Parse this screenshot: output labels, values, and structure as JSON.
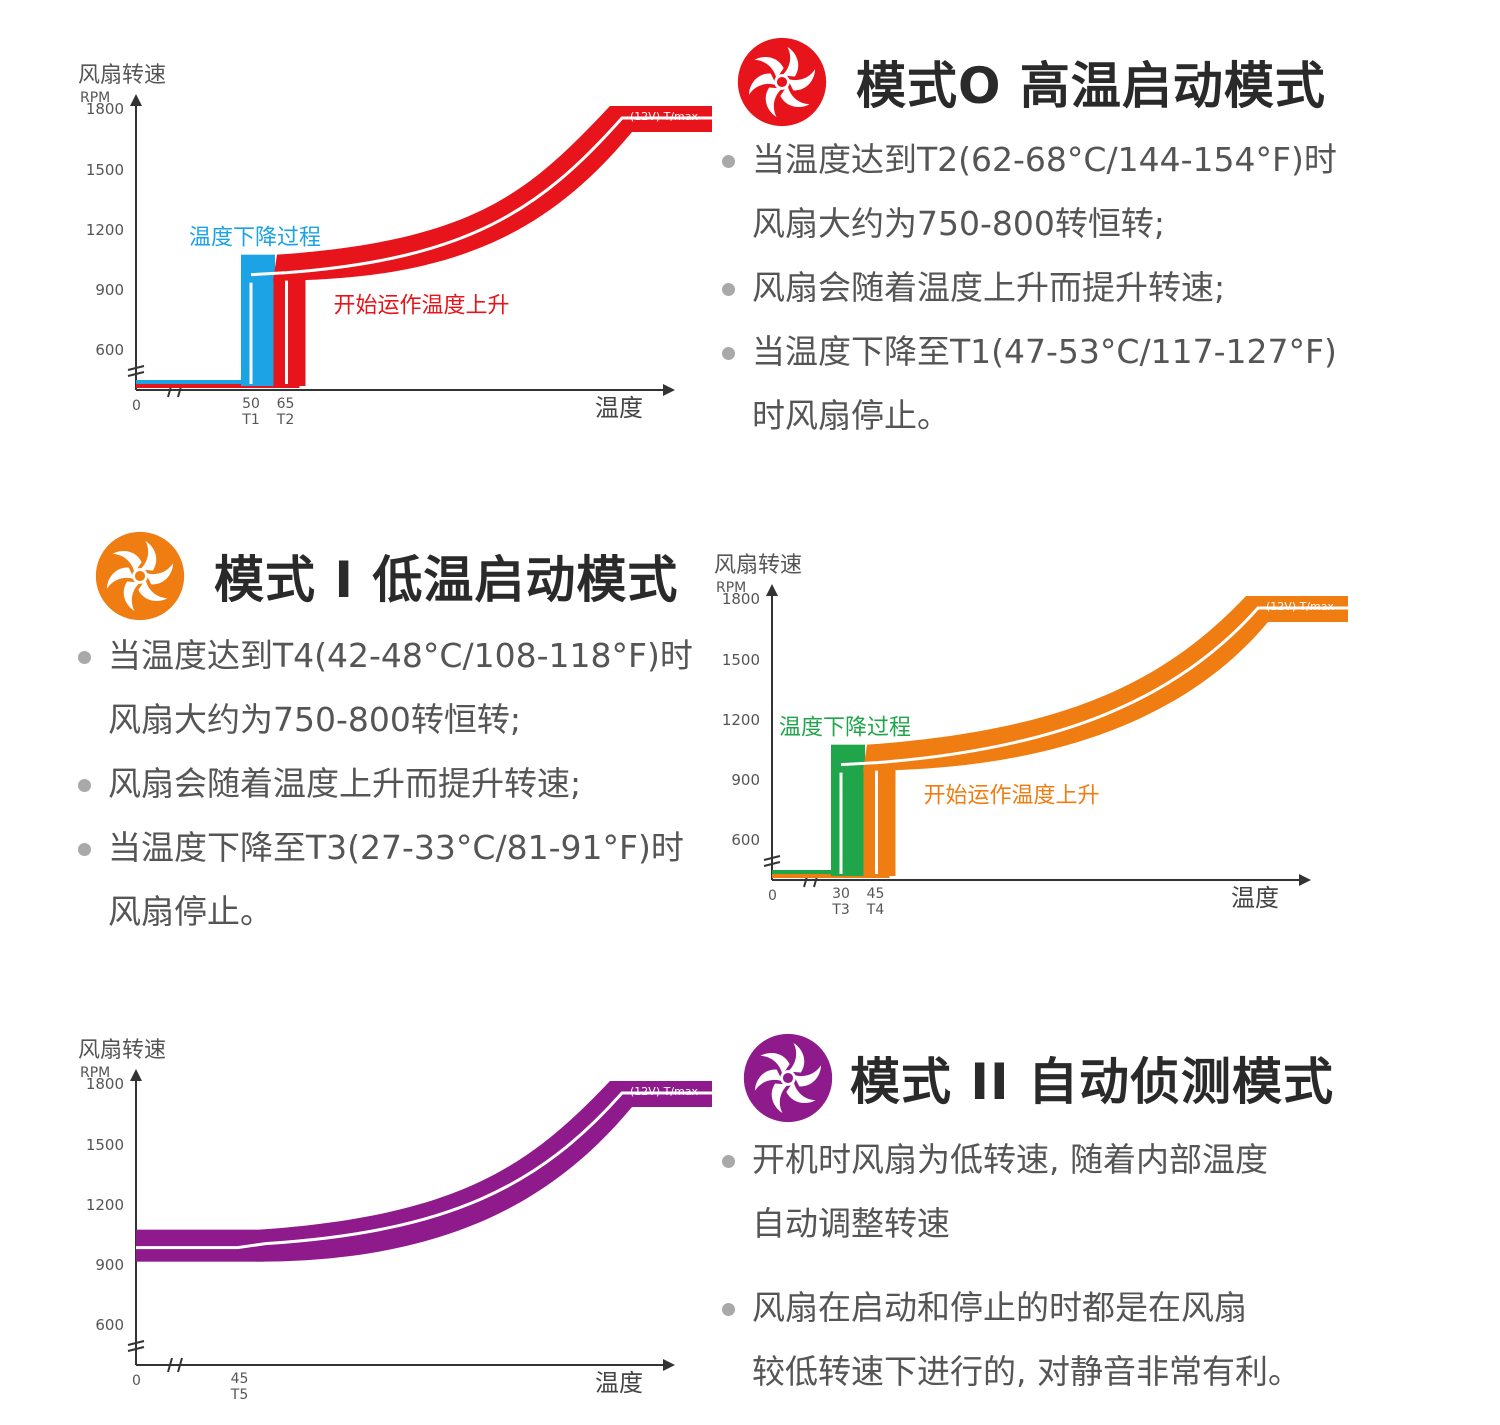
{
  "sections": [
    {
      "title": "模式O 高温启动模式",
      "icon": "fan-icon",
      "accent": "#e8141b",
      "bullets": [
        [
          "当温度达到T2(62-68°C/144-154°F)时",
          "风扇大约为750-800转恒转;"
        ],
        [
          "风扇会随着温度上升而提升转速;"
        ],
        [
          "当温度下降至T1(47-53°C/117-127°F)",
          "时风扇停止。"
        ]
      ]
    },
    {
      "title": "模式 I 低温启动模式",
      "icon": "fan-icon",
      "accent": "#ef7d12",
      "bullets": [
        [
          "当温度达到T4(42-48°C/108-118°F)时",
          "风扇大约为750-800转恒转;"
        ],
        [
          "风扇会随着温度上升而提升转速;"
        ],
        [
          "当温度下降至T3(27-33°C/81-91°F)时",
          "风扇停止。"
        ]
      ]
    },
    {
      "title": "模式 II 自动侦测模式",
      "icon": "fan-icon",
      "accent": "#8e1a8c",
      "bullets": [
        [
          "开机时风扇为低转速, 随着内部温度",
          "自动调整转速"
        ],
        [
          "风扇在启动和停止的时都是在风扇",
          "较低转速下进行的, 对静音非常有利。"
        ]
      ]
    }
  ],
  "chart_data": [
    {
      "type": "line",
      "ylabel": "风扇转速",
      "yunit": "RPM",
      "xlabel": "温度",
      "yticks": [
        600,
        900,
        1200,
        1500,
        1800
      ],
      "ylim": [
        0,
        1800
      ],
      "origin_label": "0",
      "axis_break": true,
      "main_color": "#e8141b",
      "fall_color": "#1ba3e6",
      "markers": [
        {
          "value": "50",
          "label": "T1",
          "x": 50
        },
        {
          "value": "65",
          "label": "T2",
          "x": 65
        }
      ],
      "fall_label": "温度下降过程",
      "rise_label": "开始运作温度上升",
      "max_label": "(12V)  T/max",
      "series": [
        {
          "name": "开始运作温度上升",
          "x": [
            0,
            65,
            65,
            100,
            117,
            130
          ],
          "y": [
            0,
            0,
            850,
            1050,
            1400,
            1800
          ]
        },
        {
          "name": "温度下降过程",
          "x": [
            130,
            100,
            50,
            50,
            0
          ],
          "y": [
            1800,
            850,
            850,
            0,
            0
          ]
        }
      ]
    },
    {
      "type": "line",
      "ylabel": "风扇转速",
      "yunit": "RPM",
      "xlabel": "温度",
      "yticks": [
        600,
        900,
        1200,
        1500,
        1800
      ],
      "ylim": [
        0,
        1800
      ],
      "origin_label": "0",
      "axis_break": true,
      "main_color": "#ef7d12",
      "fall_color": "#1fa64a",
      "markers": [
        {
          "value": "30",
          "label": "T3",
          "x": 30
        },
        {
          "value": "45",
          "label": "T4",
          "x": 45
        }
      ],
      "fall_label": "温度下降过程",
      "rise_label": "开始运作温度上升",
      "max_label": "(12V)  T/max",
      "series": [
        {
          "name": "开始运作温度上升",
          "x": [
            0,
            45,
            45,
            80,
            97,
            110
          ],
          "y": [
            0,
            0,
            850,
            1050,
            1400,
            1800
          ]
        },
        {
          "name": "温度下降过程",
          "x": [
            110,
            80,
            30,
            30,
            0
          ],
          "y": [
            1800,
            850,
            850,
            0,
            0
          ]
        }
      ]
    },
    {
      "type": "line",
      "ylabel": "风扇转速",
      "yunit": "RPM",
      "xlabel": "温度",
      "yticks": [
        600,
        900,
        1200,
        1500,
        1800
      ],
      "ylim": [
        0,
        1800
      ],
      "origin_label": "0",
      "axis_break": true,
      "main_color": "#8e1a8c",
      "markers": [
        {
          "value": "45",
          "label": "T5",
          "x": 45
        }
      ],
      "max_label": "(12V)  T/max",
      "series": [
        {
          "name": "",
          "x": [
            0,
            45,
            80,
            97,
            110
          ],
          "y": [
            850,
            850,
            900,
            1300,
            1800
          ]
        }
      ]
    }
  ]
}
